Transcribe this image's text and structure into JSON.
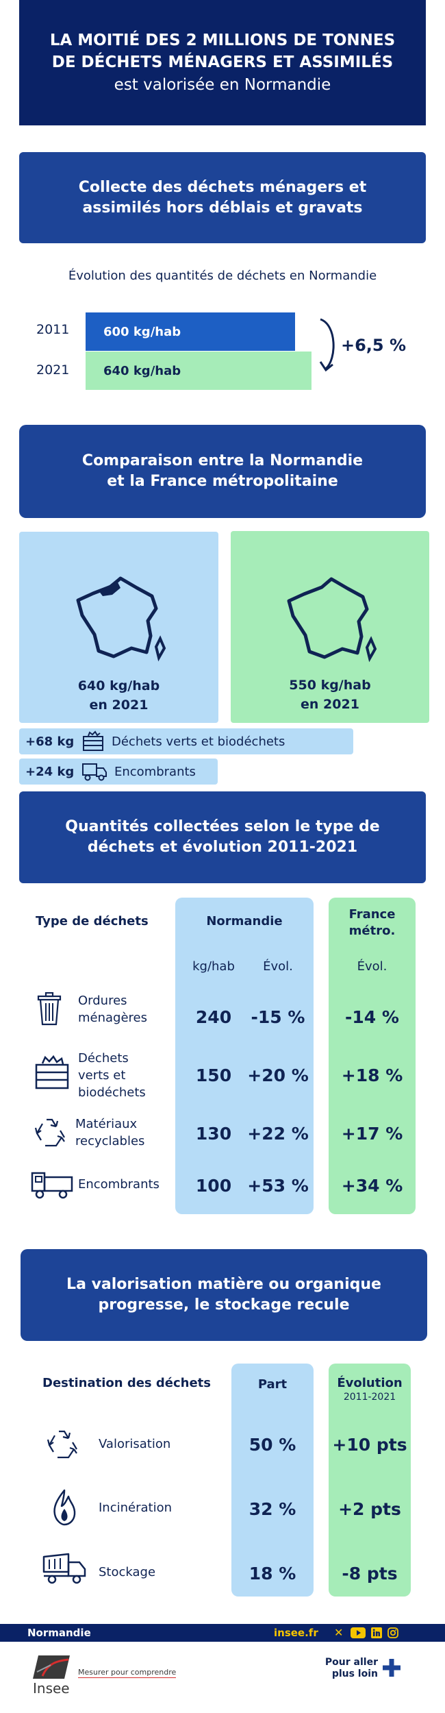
{
  "title": {
    "line1": "LA MOITIÉ DES 2 MILLIONS DE TONNES",
    "line2": "DE DÉCHETS MÉNAGERS ET ASSIMILÉS",
    "line3": "est valorisée en Normandie"
  },
  "section1": {
    "header_line1": "Collecte des déchets ménagers et",
    "header_line2": "assimilés hors déblais et gravats",
    "subtitle": "Évolution des quantités de déchets en Normandie",
    "rows": [
      {
        "year": "2011",
        "value_label": "600 kg/hab",
        "value": 600,
        "color": "#1d5fc4"
      },
      {
        "year": "2021",
        "value_label": "640 kg/hab",
        "value": 640,
        "color": "#a6ecb8"
      }
    ],
    "evolution": "+6,5 %"
  },
  "section2": {
    "header_line1": "Comparaison entre la Normandie",
    "header_line2": "et la France métropolitaine",
    "normandie": {
      "value": "640 kg/hab",
      "year": "en 2021"
    },
    "france": {
      "value": "550 kg/hab",
      "year": "en 2021"
    },
    "diffs": [
      {
        "amount": "+68 kg",
        "label": "Déchets verts et biodéchets",
        "icon": "green-waste-bin-icon"
      },
      {
        "amount": "+24 kg",
        "label": "Encombrants",
        "icon": "truck-icon"
      }
    ]
  },
  "section3": {
    "header_line1": "Quantités collectées selon le type de",
    "header_line2": "déchets et évolution 2011-2021",
    "col_type": "Type de déchets",
    "col_normandie": "Normandie",
    "col_france_line1": "France",
    "col_france_line2": "métro.",
    "sub_kghab": "kg/hab",
    "sub_evol": "Évol.",
    "sub_evol_fr": "Évol.",
    "rows": [
      {
        "label_lines": [
          "Ordures",
          "ménagères"
        ],
        "kghab": "240",
        "evol": "-15 %",
        "evol_fr": "-14 %",
        "icon": "trash-can-icon"
      },
      {
        "label_lines": [
          "Déchets",
          "verts et",
          "biodéchets"
        ],
        "kghab": "150",
        "evol": "+20 %",
        "evol_fr": "+18 %",
        "icon": "green-waste-bin-icon"
      },
      {
        "label_lines": [
          "Matériaux",
          "recyclables"
        ],
        "kghab": "130",
        "evol": "+22 %",
        "evol_fr": "+17 %",
        "icon": "recycle-icon"
      },
      {
        "label_lines": [
          "Encombrants"
        ],
        "kghab": "100",
        "evol": "+53 %",
        "evol_fr": "+34 %",
        "icon": "truck-icon"
      }
    ]
  },
  "section4": {
    "header_line1": "La valorisation matière ou organique",
    "header_line2": "progresse, le stockage recule",
    "col_dest": "Destination des déchets",
    "col_part": "Part",
    "col_evol": "Évolution",
    "col_evol_sub": "2011-2021",
    "rows": [
      {
        "label": "Valorisation",
        "part": "50 %",
        "evol": "+10 pts",
        "icon": "recycle-icon"
      },
      {
        "label": "Incinération",
        "part": "32 %",
        "evol": "+2 pts",
        "icon": "flame-icon"
      },
      {
        "label": "Stockage",
        "part": "18 %",
        "evol": "-8 pts",
        "icon": "dump-truck-icon"
      }
    ]
  },
  "footer": {
    "region": "Normandie",
    "site": "insee.fr",
    "social_icons": [
      "x-icon",
      "youtube-icon",
      "linkedin-icon",
      "instagram-icon"
    ],
    "logo_text": "Insee",
    "tagline": "Mesurer pour comprendre",
    "more_line1": "Pour aller",
    "more_line2": "plus loin"
  }
}
